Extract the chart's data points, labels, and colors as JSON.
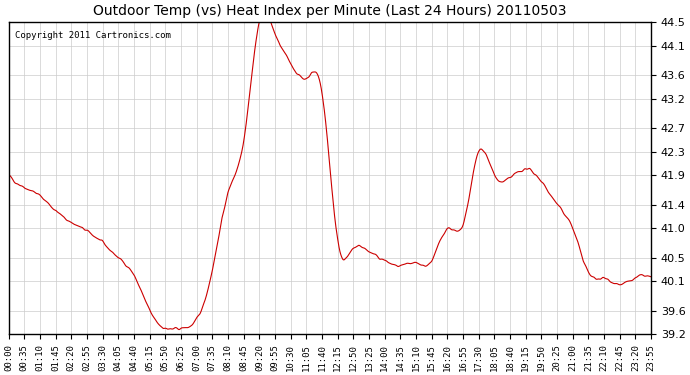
{
  "title": "Outdoor Temp (vs) Heat Index per Minute (Last 24 Hours) 20110503",
  "copyright": "Copyright 2011 Cartronics.com",
  "line_color": "#cc0000",
  "background_color": "#ffffff",
  "grid_color": "#cccccc",
  "ylim": [
    39.2,
    44.5
  ],
  "yticks": [
    39.2,
    39.6,
    40.1,
    40.5,
    41.0,
    41.4,
    41.9,
    42.3,
    42.7,
    43.2,
    43.6,
    44.1,
    44.5
  ],
  "xtick_labels": [
    "00:00",
    "00:35",
    "01:10",
    "01:45",
    "02:20",
    "02:55",
    "03:30",
    "04:05",
    "04:40",
    "05:15",
    "05:50",
    "06:25",
    "07:00",
    "07:35",
    "08:10",
    "08:45",
    "09:20",
    "09:55",
    "10:30",
    "11:05",
    "11:40",
    "12:15",
    "12:50",
    "13:25",
    "14:00",
    "14:35",
    "15:10",
    "15:45",
    "16:20",
    "16:55",
    "17:30",
    "18:05",
    "18:40",
    "19:15",
    "19:50",
    "20:25",
    "21:00",
    "21:35",
    "22:10",
    "22:45",
    "23:20",
    "23:55"
  ],
  "curve_keypoints_x": [
    0,
    35,
    70,
    105,
    140,
    175,
    210,
    245,
    280,
    315,
    350,
    385,
    420,
    455,
    490,
    525,
    560,
    595,
    630,
    665,
    700,
    735,
    770,
    805,
    840,
    875,
    910,
    945,
    980,
    1015,
    1050,
    1085,
    1120,
    1155,
    1190,
    1225,
    1260,
    1295,
    1330,
    1365,
    1400,
    1435
  ],
  "curve_keypoints_y": [
    41.9,
    41.7,
    41.55,
    41.3,
    41.1,
    40.95,
    40.75,
    40.5,
    40.2,
    39.6,
    39.3,
    39.3,
    39.45,
    40.3,
    41.6,
    42.5,
    44.5,
    44.3,
    43.8,
    43.55,
    43.3,
    40.8,
    40.65,
    40.6,
    40.45,
    40.35,
    40.4,
    40.45,
    41.0,
    41.05,
    42.3,
    41.9,
    41.85,
    42.0,
    41.8,
    41.4,
    41.0,
    40.25,
    40.15,
    40.05,
    40.15,
    40.15
  ]
}
